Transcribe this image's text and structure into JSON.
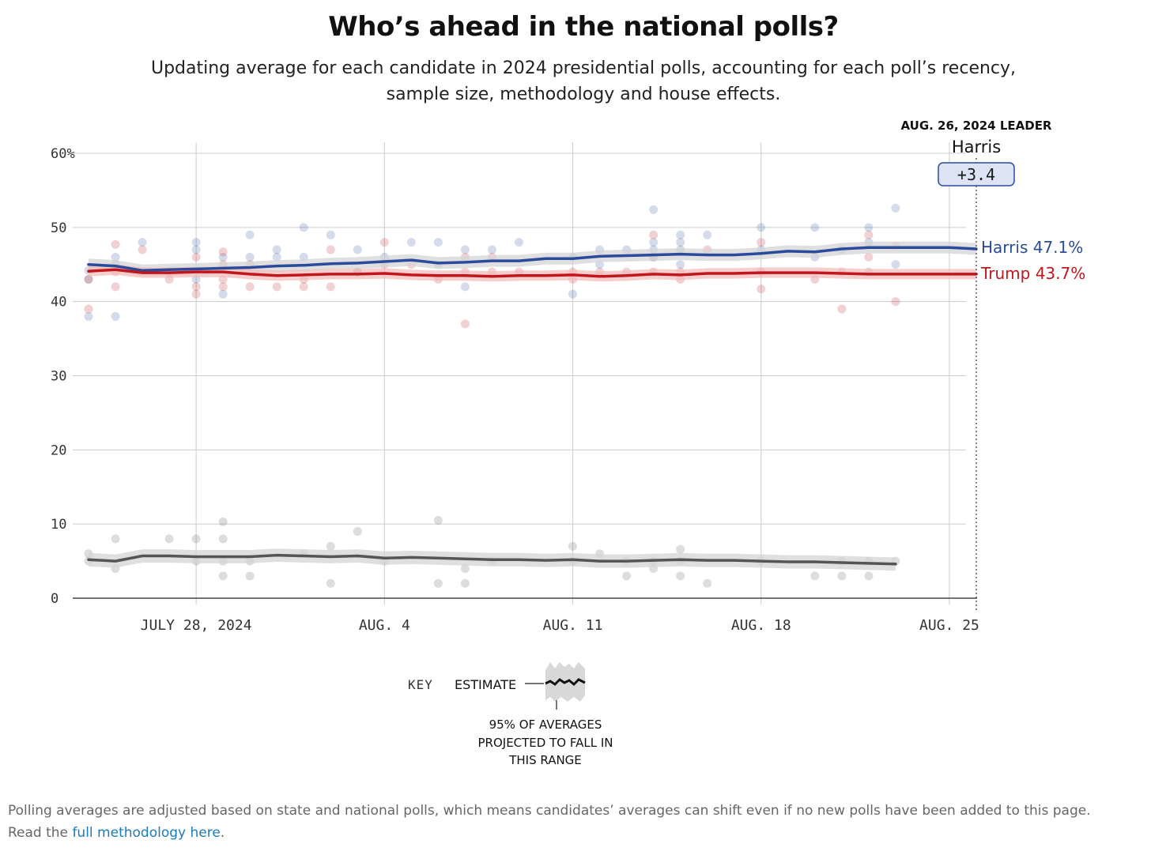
{
  "header": {
    "title": "Who’s ahead in the national polls?",
    "subtitle": "Updating average for each candidate in 2024 presidential polls, accounting for each poll’s recency, sample size, methodology and house effects."
  },
  "leader_box": {
    "heading": "AUG. 26, 2024 LEADER",
    "name": "Harris",
    "margin": "+3.4"
  },
  "end_labels": {
    "harris": "Harris 47.1%",
    "trump": "Trump 43.7%"
  },
  "key": {
    "label": "KEY",
    "estimate": "ESTIMATE",
    "range_line1": "95% OF AVERAGES",
    "range_line2": "PROJECTED TO FALL IN",
    "range_line3": "THIS RANGE"
  },
  "footer": {
    "text": "Polling averages are adjusted based on state and national polls, which means candidates’ averages can shift even if no new polls have been added to this page.",
    "read_prefix": "Read the ",
    "link_text": "full methodology here",
    "read_suffix": "."
  },
  "colors": {
    "harris": "#2a4b9b",
    "trump": "#c0171e",
    "other": "#555555",
    "grid": "#cccccc"
  },
  "chart_data": {
    "type": "line",
    "x_unit": "date",
    "x_range": [
      "2024-07-24",
      "2024-08-26"
    ],
    "ylim": [
      0,
      60
    ],
    "y_ticks": [
      0,
      10,
      20,
      30,
      40,
      50,
      60
    ],
    "y_tick_labels": [
      "0",
      "10",
      "20",
      "30",
      "40",
      "50",
      "60%"
    ],
    "x_ticks": [
      "2024-07-28",
      "2024-08-04",
      "2024-08-11",
      "2024-08-18",
      "2024-08-25"
    ],
    "x_tick_labels": [
      "JULY 28, 2024",
      "AUG. 4",
      "AUG. 11",
      "AUG. 18",
      "AUG. 25"
    ],
    "grid": true,
    "series": [
      {
        "name": "Harris",
        "color_key": "harris",
        "band": 0.8,
        "average": [
          [
            "2024-07-24",
            45.0
          ],
          [
            "2024-07-25",
            44.8
          ],
          [
            "2024-07-26",
            44.2
          ],
          [
            "2024-07-27",
            44.3
          ],
          [
            "2024-07-28",
            44.4
          ],
          [
            "2024-07-29",
            44.5
          ],
          [
            "2024-07-30",
            44.6
          ],
          [
            "2024-07-31",
            44.8
          ],
          [
            "2024-08-01",
            44.9
          ],
          [
            "2024-08-02",
            45.1
          ],
          [
            "2024-08-03",
            45.2
          ],
          [
            "2024-08-04",
            45.4
          ],
          [
            "2024-08-05",
            45.6
          ],
          [
            "2024-08-06",
            45.2
          ],
          [
            "2024-08-07",
            45.3
          ],
          [
            "2024-08-08",
            45.5
          ],
          [
            "2024-08-09",
            45.5
          ],
          [
            "2024-08-10",
            45.8
          ],
          [
            "2024-08-11",
            45.8
          ],
          [
            "2024-08-12",
            46.1
          ],
          [
            "2024-08-13",
            46.2
          ],
          [
            "2024-08-14",
            46.3
          ],
          [
            "2024-08-15",
            46.4
          ],
          [
            "2024-08-16",
            46.3
          ],
          [
            "2024-08-17",
            46.3
          ],
          [
            "2024-08-18",
            46.5
          ],
          [
            "2024-08-19",
            46.8
          ],
          [
            "2024-08-20",
            46.7
          ],
          [
            "2024-08-21",
            47.1
          ],
          [
            "2024-08-22",
            47.3
          ],
          [
            "2024-08-23",
            47.3
          ],
          [
            "2024-08-24",
            47.3
          ],
          [
            "2024-08-25",
            47.3
          ],
          [
            "2024-08-26",
            47.1
          ]
        ],
        "polls": [
          [
            "2024-07-24",
            44.2
          ],
          [
            "2024-07-24",
            38.0
          ],
          [
            "2024-07-24",
            43.0
          ],
          [
            "2024-07-25",
            46.0
          ],
          [
            "2024-07-25",
            45.0
          ],
          [
            "2024-07-25",
            38.0
          ],
          [
            "2024-07-26",
            48.0
          ],
          [
            "2024-07-27",
            44.0
          ],
          [
            "2024-07-28",
            48.0
          ],
          [
            "2024-07-28",
            47.0
          ],
          [
            "2024-07-28",
            43.0
          ],
          [
            "2024-07-29",
            46.0
          ],
          [
            "2024-07-29",
            41.0
          ],
          [
            "2024-07-30",
            49.0
          ],
          [
            "2024-07-30",
            46.0
          ],
          [
            "2024-07-31",
            47.0
          ],
          [
            "2024-07-31",
            46.0
          ],
          [
            "2024-08-01",
            50.0
          ],
          [
            "2024-08-01",
            46.0
          ],
          [
            "2024-08-02",
            49.0
          ],
          [
            "2024-08-03",
            47.0
          ],
          [
            "2024-08-03",
            44.0
          ],
          [
            "2024-08-04",
            46.0
          ],
          [
            "2024-08-05",
            48.0
          ],
          [
            "2024-08-06",
            48.0
          ],
          [
            "2024-08-06",
            45.0
          ],
          [
            "2024-08-07",
            47.0
          ],
          [
            "2024-08-07",
            42.0
          ],
          [
            "2024-08-08",
            47.0
          ],
          [
            "2024-08-09",
            48.0
          ],
          [
            "2024-08-11",
            46.0
          ],
          [
            "2024-08-11",
            41.0
          ],
          [
            "2024-08-12",
            47.0
          ],
          [
            "2024-08-12",
            45.0
          ],
          [
            "2024-08-13",
            47.0
          ],
          [
            "2024-08-14",
            52.4
          ],
          [
            "2024-08-14",
            48.0
          ],
          [
            "2024-08-14",
            47.0
          ],
          [
            "2024-08-14",
            46.0
          ],
          [
            "2024-08-15",
            49.0
          ],
          [
            "2024-08-15",
            48.0
          ],
          [
            "2024-08-15",
            47.0
          ],
          [
            "2024-08-15",
            45.0
          ],
          [
            "2024-08-16",
            49.0
          ],
          [
            "2024-08-18",
            50.0
          ],
          [
            "2024-08-18",
            47.0
          ],
          [
            "2024-08-20",
            50.0
          ],
          [
            "2024-08-20",
            46.0
          ],
          [
            "2024-08-21",
            47.0
          ],
          [
            "2024-08-22",
            50.0
          ],
          [
            "2024-08-22",
            48.0
          ],
          [
            "2024-08-23",
            52.6
          ],
          [
            "2024-08-23",
            45.0
          ]
        ]
      },
      {
        "name": "Trump",
        "color_key": "trump",
        "band": 0.7,
        "average": [
          [
            "2024-07-24",
            44.1
          ],
          [
            "2024-07-25",
            44.3
          ],
          [
            "2024-07-26",
            43.9
          ],
          [
            "2024-07-27",
            43.9
          ],
          [
            "2024-07-28",
            44.0
          ],
          [
            "2024-07-29",
            44.0
          ],
          [
            "2024-07-30",
            43.7
          ],
          [
            "2024-07-31",
            43.5
          ],
          [
            "2024-08-01",
            43.6
          ],
          [
            "2024-08-02",
            43.7
          ],
          [
            "2024-08-03",
            43.7
          ],
          [
            "2024-08-04",
            43.8
          ],
          [
            "2024-08-05",
            43.6
          ],
          [
            "2024-08-06",
            43.5
          ],
          [
            "2024-08-07",
            43.5
          ],
          [
            "2024-08-08",
            43.4
          ],
          [
            "2024-08-09",
            43.5
          ],
          [
            "2024-08-10",
            43.5
          ],
          [
            "2024-08-11",
            43.6
          ],
          [
            "2024-08-12",
            43.4
          ],
          [
            "2024-08-13",
            43.5
          ],
          [
            "2024-08-14",
            43.7
          ],
          [
            "2024-08-15",
            43.6
          ],
          [
            "2024-08-16",
            43.8
          ],
          [
            "2024-08-17",
            43.8
          ],
          [
            "2024-08-18",
            43.9
          ],
          [
            "2024-08-19",
            43.9
          ],
          [
            "2024-08-20",
            43.9
          ],
          [
            "2024-08-21",
            43.8
          ],
          [
            "2024-08-22",
            43.7
          ],
          [
            "2024-08-23",
            43.7
          ],
          [
            "2024-08-24",
            43.7
          ],
          [
            "2024-08-25",
            43.7
          ],
          [
            "2024-08-26",
            43.7
          ]
        ],
        "polls": [
          [
            "2024-07-24",
            39.0
          ],
          [
            "2024-07-24",
            43.0
          ],
          [
            "2024-07-25",
            47.7
          ],
          [
            "2024-07-25",
            42.0
          ],
          [
            "2024-07-25",
            44.0
          ],
          [
            "2024-07-26",
            47.0
          ],
          [
            "2024-07-27",
            43.0
          ],
          [
            "2024-07-28",
            46.0
          ],
          [
            "2024-07-28",
            42.0
          ],
          [
            "2024-07-28",
            41.0
          ],
          [
            "2024-07-29",
            46.7
          ],
          [
            "2024-07-29",
            45.0
          ],
          [
            "2024-07-29",
            43.0
          ],
          [
            "2024-07-29",
            42.0
          ],
          [
            "2024-07-30",
            45.0
          ],
          [
            "2024-07-30",
            42.0
          ],
          [
            "2024-07-31",
            42.0
          ],
          [
            "2024-08-01",
            43.0
          ],
          [
            "2024-08-01",
            42.0
          ],
          [
            "2024-08-02",
            47.0
          ],
          [
            "2024-08-02",
            42.0
          ],
          [
            "2024-08-03",
            44.0
          ],
          [
            "2024-08-04",
            48.0
          ],
          [
            "2024-08-04",
            45.0
          ],
          [
            "2024-08-05",
            45.0
          ],
          [
            "2024-08-06",
            43.0
          ],
          [
            "2024-08-07",
            46.0
          ],
          [
            "2024-08-07",
            44.0
          ],
          [
            "2024-08-07",
            37.0
          ],
          [
            "2024-08-08",
            46.0
          ],
          [
            "2024-08-08",
            44.0
          ],
          [
            "2024-08-09",
            44.0
          ],
          [
            "2024-08-11",
            44.0
          ],
          [
            "2024-08-11",
            43.0
          ],
          [
            "2024-08-12",
            44.0
          ],
          [
            "2024-08-13",
            44.0
          ],
          [
            "2024-08-14",
            49.0
          ],
          [
            "2024-08-14",
            46.0
          ],
          [
            "2024-08-14",
            44.0
          ],
          [
            "2024-08-15",
            44.0
          ],
          [
            "2024-08-15",
            43.0
          ],
          [
            "2024-08-16",
            47.0
          ],
          [
            "2024-08-18",
            48.0
          ],
          [
            "2024-08-18",
            44.0
          ],
          [
            "2024-08-18",
            41.7
          ],
          [
            "2024-08-20",
            43.0
          ],
          [
            "2024-08-21",
            44.0
          ],
          [
            "2024-08-21",
            39.0
          ],
          [
            "2024-08-22",
            49.0
          ],
          [
            "2024-08-22",
            46.0
          ],
          [
            "2024-08-22",
            44.0
          ],
          [
            "2024-08-23",
            47.5
          ],
          [
            "2024-08-23",
            40.0
          ]
        ]
      },
      {
        "name": "",
        "color_key": "other",
        "band": 0.9,
        "average": [
          [
            "2024-07-24",
            5.2
          ],
          [
            "2024-07-25",
            5.0
          ],
          [
            "2024-07-26",
            5.7
          ],
          [
            "2024-07-27",
            5.7
          ],
          [
            "2024-07-28",
            5.6
          ],
          [
            "2024-07-29",
            5.6
          ],
          [
            "2024-07-30",
            5.6
          ],
          [
            "2024-07-31",
            5.8
          ],
          [
            "2024-08-01",
            5.7
          ],
          [
            "2024-08-02",
            5.6
          ],
          [
            "2024-08-03",
            5.7
          ],
          [
            "2024-08-04",
            5.4
          ],
          [
            "2024-08-05",
            5.5
          ],
          [
            "2024-08-06",
            5.4
          ],
          [
            "2024-08-07",
            5.3
          ],
          [
            "2024-08-08",
            5.2
          ],
          [
            "2024-08-09",
            5.2
          ],
          [
            "2024-08-10",
            5.1
          ],
          [
            "2024-08-11",
            5.2
          ],
          [
            "2024-08-12",
            5.0
          ],
          [
            "2024-08-13",
            5.0
          ],
          [
            "2024-08-14",
            5.1
          ],
          [
            "2024-08-15",
            5.2
          ],
          [
            "2024-08-16",
            5.1
          ],
          [
            "2024-08-17",
            5.1
          ],
          [
            "2024-08-18",
            5.0
          ],
          [
            "2024-08-19",
            4.9
          ],
          [
            "2024-08-20",
            4.9
          ],
          [
            "2024-08-21",
            4.8
          ],
          [
            "2024-08-22",
            4.7
          ],
          [
            "2024-08-23",
            4.6
          ]
        ],
        "polls": [
          [
            "2024-07-24",
            6.0
          ],
          [
            "2024-07-24",
            5.0
          ],
          [
            "2024-07-25",
            8.0
          ],
          [
            "2024-07-25",
            4.0
          ],
          [
            "2024-07-27",
            8.0
          ],
          [
            "2024-07-28",
            8.0
          ],
          [
            "2024-07-28",
            5.0
          ],
          [
            "2024-07-29",
            10.3
          ],
          [
            "2024-07-29",
            8.0
          ],
          [
            "2024-07-29",
            5.0
          ],
          [
            "2024-07-29",
            3.0
          ],
          [
            "2024-07-30",
            5.0
          ],
          [
            "2024-07-30",
            3.0
          ],
          [
            "2024-08-01",
            6.0
          ],
          [
            "2024-08-02",
            7.0
          ],
          [
            "2024-08-02",
            2.0
          ],
          [
            "2024-08-03",
            9.0
          ],
          [
            "2024-08-04",
            5.0
          ],
          [
            "2024-08-06",
            10.5
          ],
          [
            "2024-08-06",
            2.0
          ],
          [
            "2024-08-07",
            4.0
          ],
          [
            "2024-08-07",
            2.0
          ],
          [
            "2024-08-08",
            5.0
          ],
          [
            "2024-08-11",
            7.0
          ],
          [
            "2024-08-11",
            5.0
          ],
          [
            "2024-08-12",
            6.0
          ],
          [
            "2024-08-13",
            5.0
          ],
          [
            "2024-08-13",
            3.0
          ],
          [
            "2024-08-14",
            5.0
          ],
          [
            "2024-08-14",
            4.0
          ],
          [
            "2024-08-15",
            6.6
          ],
          [
            "2024-08-15",
            5.0
          ],
          [
            "2024-08-15",
            3.0
          ],
          [
            "2024-08-16",
            2.0
          ],
          [
            "2024-08-18",
            5.0
          ],
          [
            "2024-08-20",
            3.0
          ],
          [
            "2024-08-21",
            5.0
          ],
          [
            "2024-08-21",
            3.0
          ],
          [
            "2024-08-22",
            5.0
          ],
          [
            "2024-08-22",
            3.0
          ],
          [
            "2024-08-23",
            5.0
          ]
        ]
      }
    ]
  }
}
